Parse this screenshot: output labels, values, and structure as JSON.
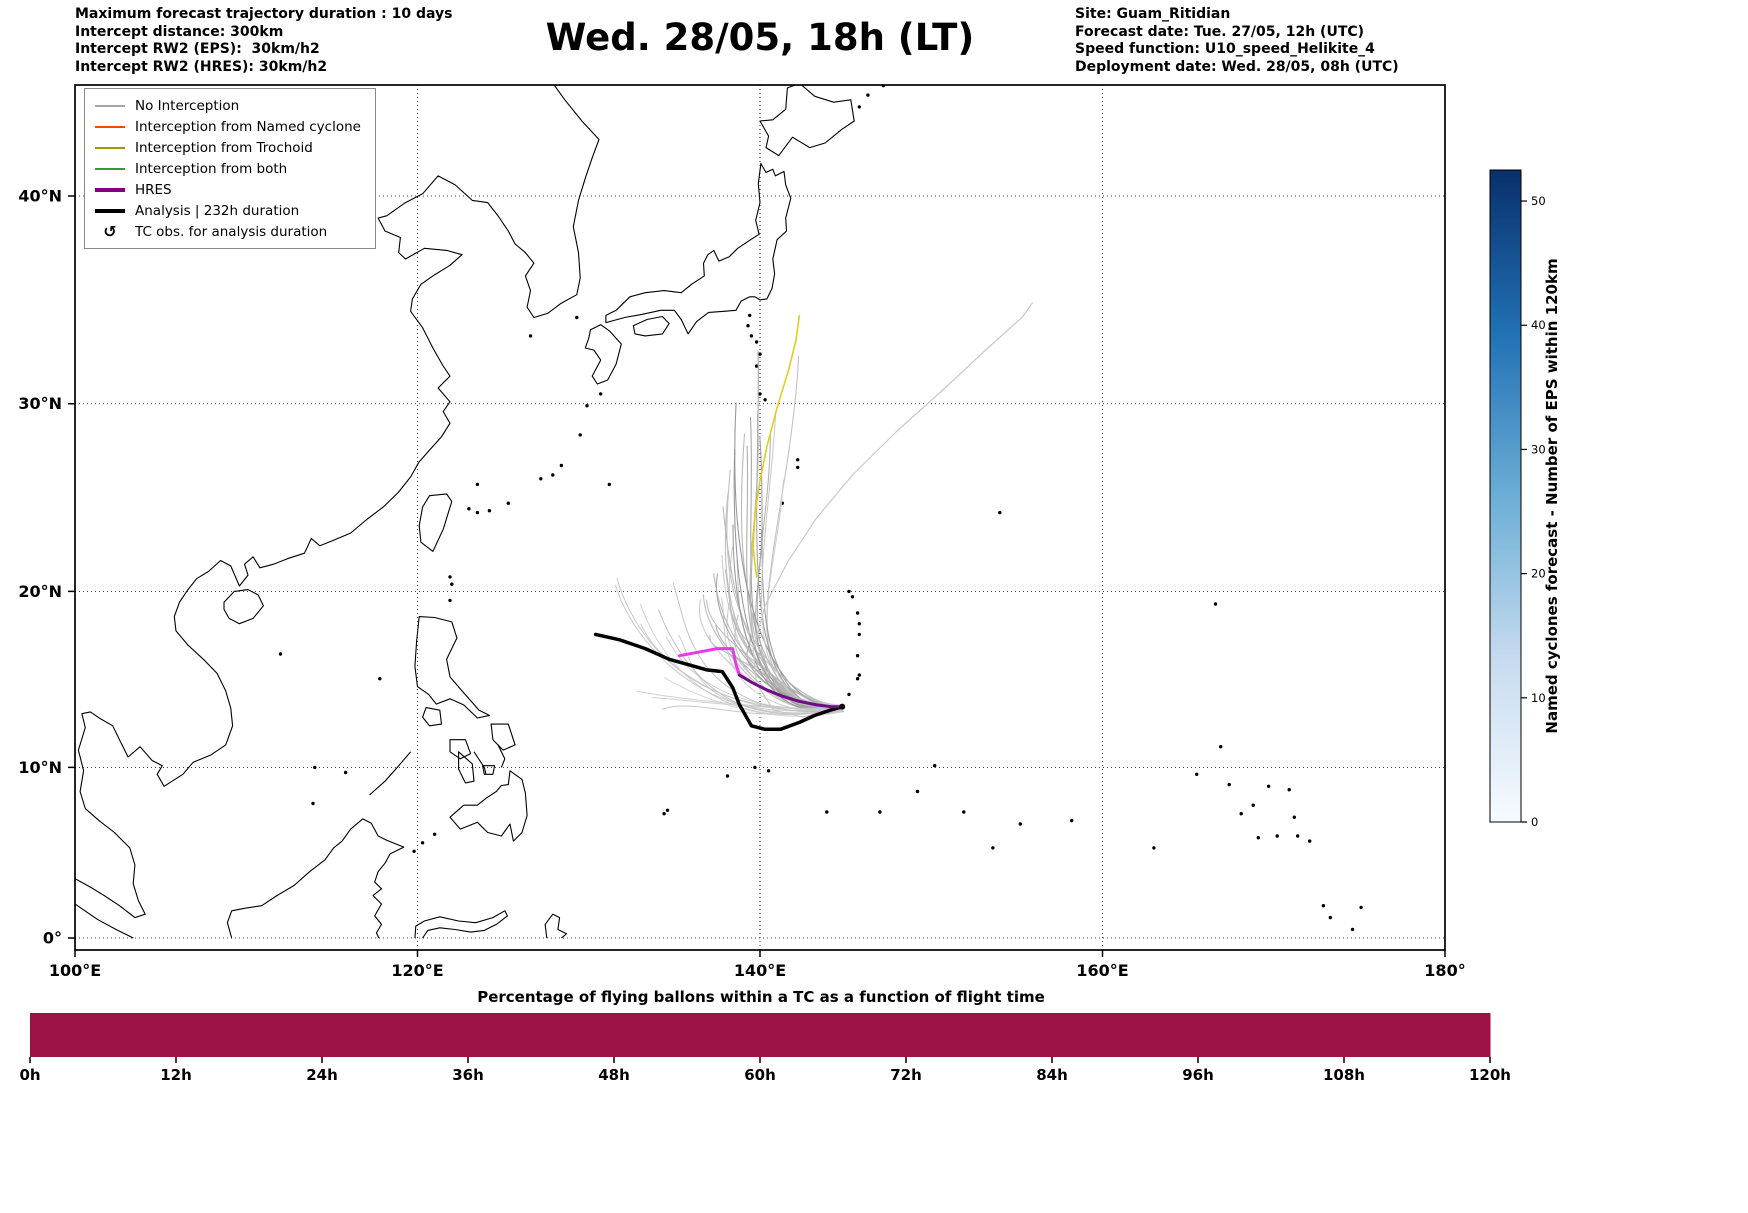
{
  "header": {
    "info_left_lines": [
      "Maximum forecast trajectory duration : 10 days",
      "Intercept distance: 300km",
      "Intercept RW2 (EPS):  30km/h2",
      "Intercept RW2 (HRES): 30km/h2"
    ],
    "info_right_lines": [
      "Site: Guam_Ritidian",
      "Forecast date: Tue. 27/05, 12h (UTC)",
      "Speed function: U10_speed_Helikite_4",
      "Deployment date: Wed. 28/05, 08h (UTC)"
    ]
  },
  "legend": {
    "items": [
      {
        "label": "No Interception",
        "type": "line",
        "color": "#a6a6a6",
        "width": 2
      },
      {
        "label": "Interception from Named cyclone",
        "type": "line",
        "color": "#ff4500",
        "width": 2
      },
      {
        "label": "Interception from Trochoid",
        "type": "line",
        "color": "#9c9a00",
        "width": 2
      },
      {
        "label": "Interception from both",
        "type": "line",
        "color": "#2e9e2e",
        "width": 2
      },
      {
        "label": "HRES",
        "type": "line",
        "color": "#800080",
        "width": 4
      },
      {
        "label": "Analysis | 232h duration",
        "type": "line",
        "color": "#000000",
        "width": 4
      },
      {
        "label": "TC obs. for analysis duration",
        "type": "symbol",
        "symbol": "↺",
        "color": "#000000"
      }
    ]
  },
  "chart_data": {
    "type": "map-trajectories",
    "title": "Wed. 28/05, 18h (LT)",
    "map": {
      "projection": "mercator",
      "lon_range": [
        100,
        180
      ],
      "lat_range": [
        -0.7,
        44.9
      ],
      "grid": true,
      "x_ticks": [
        {
          "v": 100,
          "label": "100°E"
        },
        {
          "v": 120,
          "label": "120°E"
        },
        {
          "v": 140,
          "label": "140°E"
        },
        {
          "v": 160,
          "label": "160°E"
        },
        {
          "v": 180,
          "label": "180°"
        }
      ],
      "y_ticks": [
        {
          "v": 0,
          "label": "0°"
        },
        {
          "v": 10,
          "label": "10°N"
        },
        {
          "v": 20,
          "label": "20°N"
        },
        {
          "v": 30,
          "label": "30°N"
        },
        {
          "v": 40,
          "label": "40°N"
        }
      ],
      "launch_site": {
        "name": "Guam_Ritidian",
        "lon": 144.8,
        "lat": 13.5
      }
    },
    "tracks": {
      "analysis": {
        "name": "Analysis | 232h duration",
        "color": "#000000",
        "width": 3.5,
        "points": [
          [
            130.4,
            17.6
          ],
          [
            131.8,
            17.3
          ],
          [
            133.3,
            16.8
          ],
          [
            134.7,
            16.2
          ],
          [
            135.8,
            15.9
          ],
          [
            136.9,
            15.6
          ],
          [
            137.8,
            15.5
          ],
          [
            138.4,
            14.6
          ],
          [
            138.8,
            13.6
          ],
          [
            139.5,
            12.4
          ],
          [
            140.3,
            12.2
          ],
          [
            141.2,
            12.2
          ],
          [
            142.3,
            12.6
          ],
          [
            143.2,
            13.0
          ],
          [
            144.1,
            13.3
          ],
          [
            144.8,
            13.5
          ]
        ]
      },
      "hres": {
        "name": "HRES",
        "segment_colors": [
          "#e839e8",
          "#6f0c86"
        ],
        "split_index": 5,
        "width": 3,
        "points": [
          [
            135.3,
            16.4
          ],
          [
            136.4,
            16.6
          ],
          [
            137.5,
            16.8
          ],
          [
            138.4,
            16.8
          ],
          [
            138.6,
            15.9
          ],
          [
            138.8,
            15.3
          ],
          [
            139.5,
            14.9
          ],
          [
            140.3,
            14.5
          ],
          [
            141.3,
            14.1
          ],
          [
            142.3,
            13.8
          ],
          [
            143.3,
            13.6
          ],
          [
            144.2,
            13.5
          ],
          [
            144.8,
            13.5
          ]
        ]
      },
      "trochoid": {
        "name": "Interception from Trochoid",
        "color": "#e2cd1e",
        "width": 1.6,
        "points": [
          [
            139.8,
            20.8
          ],
          [
            139.6,
            22.4
          ],
          [
            139.7,
            24.2
          ],
          [
            140.0,
            26.0
          ],
          [
            140.4,
            27.8
          ],
          [
            141.0,
            29.8
          ],
          [
            141.7,
            31.8
          ],
          [
            142.1,
            33.2
          ],
          [
            142.3,
            34.4
          ]
        ]
      },
      "no_interception_long": {
        "name": "No Interception",
        "color": "#c9c9c9",
        "width": 1.2,
        "points": [
          [
            144.8,
            13.5
          ],
          [
            142.5,
            12.9
          ],
          [
            140.8,
            13.3
          ],
          [
            139.8,
            14.8
          ],
          [
            139.6,
            16.8
          ],
          [
            140.3,
            19.2
          ],
          [
            141.6,
            21.6
          ],
          [
            143.3,
            24.0
          ],
          [
            145.4,
            26.3
          ],
          [
            148.0,
            28.6
          ],
          [
            150.8,
            30.8
          ],
          [
            153.3,
            32.8
          ],
          [
            155.3,
            34.3
          ],
          [
            155.9,
            35.0
          ]
        ]
      },
      "eps_ensemble": {
        "name": "No Interception (EPS members)",
        "count_main": 34,
        "count_west": 12,
        "seed": 7,
        "gray_dark": "#8e8e8e",
        "gray_light": "#cccccc",
        "width": 1.1
      }
    },
    "colorbar": {
      "label": "Named cyclones forecast - Number of EPS within 120km",
      "vmin": 0,
      "vmax": 52.5,
      "ticks": [
        0,
        10,
        20,
        30,
        40,
        50
      ],
      "gradient": [
        "#f7fbff",
        "#c6dbef",
        "#6baed6",
        "#2171b5",
        "#08306b"
      ]
    },
    "flight_bar": {
      "title": "Percentage of flying ballons within a TC as a function of flight time",
      "bar_color": "#9b1247",
      "x_tick_labels": [
        "0h",
        "12h",
        "24h",
        "36h",
        "48h",
        "60h",
        "72h",
        "84h",
        "96h",
        "108h",
        "120h"
      ],
      "hours": [
        0,
        12,
        24,
        36,
        48,
        60,
        72,
        84,
        96,
        108,
        120
      ],
      "values_percent": [
        100,
        100,
        100,
        100,
        100,
        100,
        100,
        100,
        100,
        100,
        100
      ],
      "y_range": [
        0,
        100
      ]
    }
  }
}
